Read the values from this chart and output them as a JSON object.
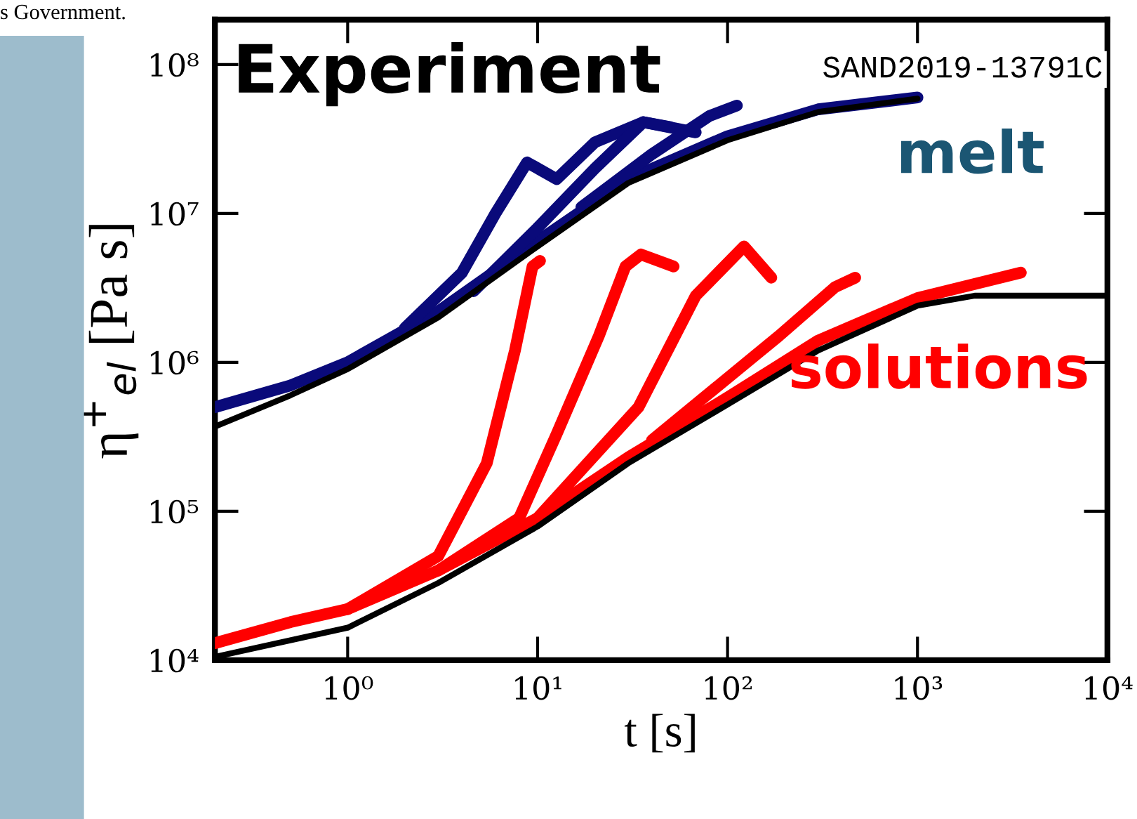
{
  "chart_data": {
    "type": "line",
    "xlabel": "t [s]",
    "ylabel": "η$^{+}$$_{el}$ [Pa s]",
    "log": "xy",
    "grid": false,
    "legend": false,
    "line_style": "solid",
    "xlim": [
      0.2,
      10000
    ],
    "ylim": [
      10000,
      200000000
    ],
    "xticks": [
      {
        "value": 1,
        "label": "10⁰"
      },
      {
        "value": 10,
        "label": "10¹"
      },
      {
        "value": 100,
        "label": "10²"
      },
      {
        "value": 1000,
        "label": "10³"
      },
      {
        "value": 10000,
        "label": "10⁴"
      }
    ],
    "yticks": [
      {
        "value": 10000,
        "label": "10⁴"
      },
      {
        "value": 100000,
        "label": "10⁵"
      },
      {
        "value": 1000000,
        "label": "10⁶"
      },
      {
        "value": 10000000,
        "label": "10⁷"
      },
      {
        "value": 100000000,
        "label": "10⁸"
      }
    ],
    "series": [
      {
        "color": "#0a0a7a",
        "x": [
          0.2,
          0.5,
          1,
          3,
          10,
          30,
          100,
          300,
          1000
        ],
        "values": [
          500000,
          700000,
          1000000,
          2200000,
          6500000,
          17000000,
          33000000,
          50000000,
          60000000
        ]
      },
      {
        "color": "#0a0a7a",
        "x": [
          2,
          4,
          6,
          8.8,
          12.6,
          20,
          36,
          50
        ],
        "values": [
          1700000,
          4000000,
          10000000,
          22000000,
          17000000,
          30000000,
          41000000,
          38000000
        ]
      },
      {
        "color": "#0a0a7a",
        "x": [
          4.6,
          10,
          20,
          36,
          68
        ],
        "values": [
          3000000,
          8000000,
          20000000,
          41000000,
          35000000
        ]
      },
      {
        "color": "#0a0a7a",
        "x": [
          17,
          40,
          80,
          112
        ],
        "values": [
          11000000,
          25000000,
          45000000,
          53000000
        ]
      },
      {
        "color": "#ff0000",
        "x": [
          0.2,
          0.5,
          1,
          3,
          10,
          30,
          100,
          300,
          1000,
          3500
        ],
        "values": [
          13000,
          18000,
          22000,
          40000,
          90000,
          230000,
          580000,
          1400000,
          2700000,
          4000000
        ]
      },
      {
        "color": "#ff0000",
        "x": [
          1,
          3,
          5.4,
          7.6,
          9.4,
          10.3
        ],
        "values": [
          22000,
          50000,
          210000,
          1200000,
          4400000,
          4800000
        ]
      },
      {
        "color": "#ff0000",
        "x": [
          3,
          8,
          12.6,
          21,
          29,
          35,
          52
        ],
        "values": [
          40000,
          90000,
          330000,
          1500000,
          4400000,
          5300000,
          4400000
        ]
      },
      {
        "color": "#ff0000",
        "x": [
          10,
          34,
          68,
          122,
          170
        ],
        "values": [
          90000,
          500000,
          2800000,
          6000000,
          3700000
        ]
      },
      {
        "color": "#ff0000",
        "x": [
          40,
          186,
          368,
          470
        ],
        "values": [
          300000,
          1500000,
          3200000,
          3700000
        ]
      },
      {
        "color": "#000000",
        "x": [
          0.2,
          0.5,
          1,
          3,
          10,
          30,
          100,
          300,
          1000
        ],
        "values": [
          370000,
          600000,
          900000,
          2000000,
          6000000,
          16000000,
          31000000,
          48000000,
          59000000
        ]
      },
      {
        "color": "#000000",
        "x": [
          0.2,
          1,
          3,
          10,
          30,
          100,
          300,
          1000,
          2000,
          10000
        ],
        "values": [
          10500,
          16500,
          33000,
          79000,
          210000,
          520000,
          1200000,
          2400000,
          2800000,
          2800000
        ]
      }
    ],
    "annotations": [
      "s Government.",
      "Experiment",
      "SAND2019-13791C",
      "melt",
      "solutions"
    ]
  }
}
